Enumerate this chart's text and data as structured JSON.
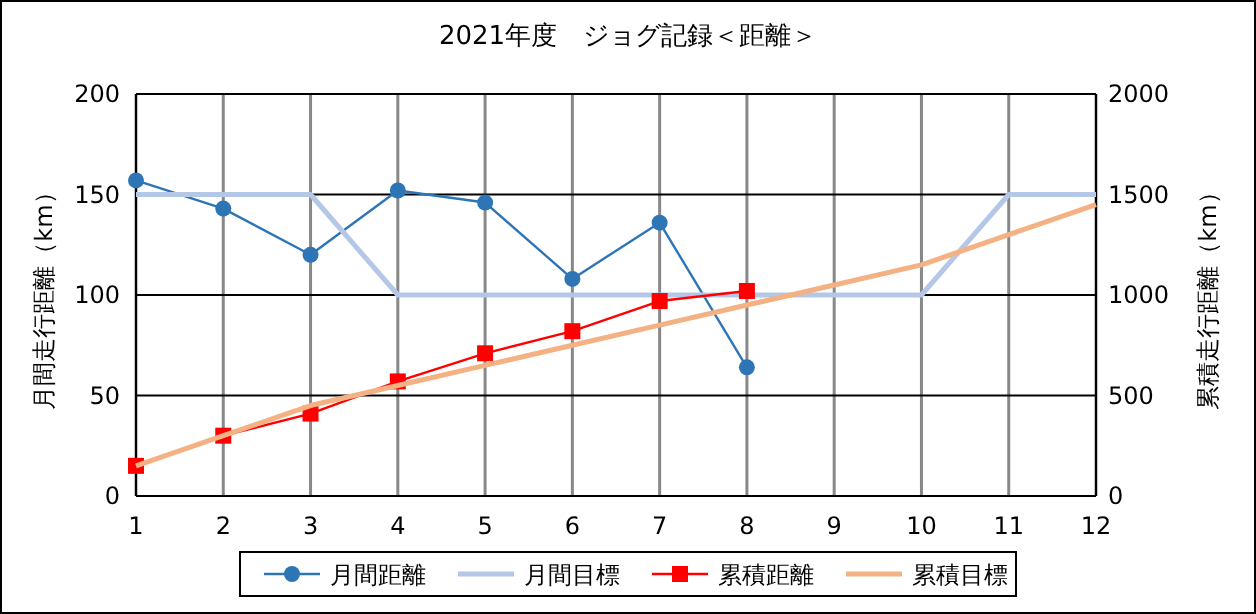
{
  "chart_data": {
    "type": "line",
    "title": "2021年度　ジョグ記録＜距離＞",
    "ylabel": "月間走行距離（km）",
    "y2label": "累積走行距離（km）",
    "x": [
      1,
      2,
      3,
      4,
      5,
      6,
      7,
      8,
      9,
      10,
      11,
      12
    ],
    "xlim": [
      1,
      12
    ],
    "xticks": [
      1,
      2,
      3,
      4,
      5,
      6,
      7,
      8,
      9,
      10,
      11,
      12
    ],
    "ylim": [
      0,
      200
    ],
    "yticks": [
      0,
      50,
      100,
      150,
      200
    ],
    "y2lim": [
      0,
      2000
    ],
    "y2ticks": [
      0,
      500,
      1000,
      1500,
      2000
    ],
    "grid": true,
    "legend": "bottom",
    "series": [
      {
        "name": "月間距離",
        "color": "#2e75b6",
        "marker": "circle",
        "values": [
          157,
          143,
          120,
          152,
          146,
          108,
          136,
          64,
          null,
          null,
          null,
          null
        ]
      },
      {
        "name": "月間目標",
        "color": "#b4c7e7",
        "marker": "none",
        "values": [
          150,
          150,
          150,
          100,
          100,
          100,
          100,
          100,
          100,
          100,
          150,
          150
        ]
      },
      {
        "name": "累積距離",
        "color": "#ff0000",
        "marker": "square",
        "axis": "y2",
        "values": [
          150,
          300,
          410,
          570,
          710,
          820,
          970,
          1020,
          null,
          null,
          null,
          null
        ]
      },
      {
        "name": "累積目標",
        "color": "#f4b183",
        "marker": "none",
        "axis": "y2",
        "values": [
          150,
          300,
          450,
          550,
          650,
          750,
          850,
          950,
          1050,
          1150,
          1300,
          1450
        ]
      }
    ]
  }
}
